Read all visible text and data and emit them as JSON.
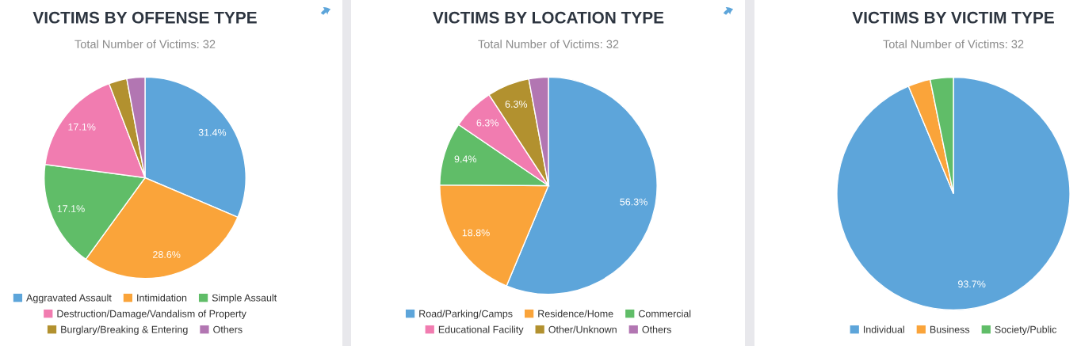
{
  "chart_data": [
    {
      "type": "pie",
      "title": "VICTIMS BY OFFENSE TYPE",
      "subtitle": "Total Number of Victims: 32",
      "categories": [
        "Aggravated Assault",
        "Intimidation",
        "Simple Assault",
        "Destruction/Damage/Vandalism of Property",
        "Burglary/Breaking & Entering",
        "Others"
      ],
      "values": [
        31.4,
        28.6,
        17.1,
        17.1,
        2.9,
        2.9
      ],
      "colors": [
        "#5da5da",
        "#faa43a",
        "#60bd68",
        "#f17cb0",
        "#b2912f",
        "#b276b2"
      ],
      "value_labels": [
        "31.4%",
        "28.6%",
        "17.1%",
        "17.1%",
        null,
        null
      ],
      "legend": "bottom"
    },
    {
      "type": "pie",
      "title": "VICTIMS BY LOCATION TYPE",
      "subtitle": "Total Number of Victims: 32",
      "categories": [
        "Road/Parking/Camps",
        "Residence/Home",
        "Commercial",
        "Educational Facility",
        "Other/Unknown",
        "Others"
      ],
      "values": [
        56.3,
        18.8,
        9.4,
        6.3,
        6.3,
        2.9
      ],
      "colors": [
        "#5da5da",
        "#faa43a",
        "#60bd68",
        "#f17cb0",
        "#b2912f",
        "#b276b2"
      ],
      "value_labels": [
        "56.3%",
        "18.8%",
        "9.4%",
        "6.3%",
        "6.3%",
        null
      ],
      "legend": "bottom"
    },
    {
      "type": "pie",
      "title": "VICTIMS BY VICTIM TYPE",
      "subtitle": "Total Number of Victims: 32",
      "categories": [
        "Individual",
        "Business",
        "Society/Public"
      ],
      "values": [
        93.7,
        3.1,
        3.2
      ],
      "colors": [
        "#5da5da",
        "#faa43a",
        "#60bd68"
      ],
      "value_labels": [
        "93.7%",
        null,
        null
      ],
      "legend": "bottom"
    }
  ]
}
